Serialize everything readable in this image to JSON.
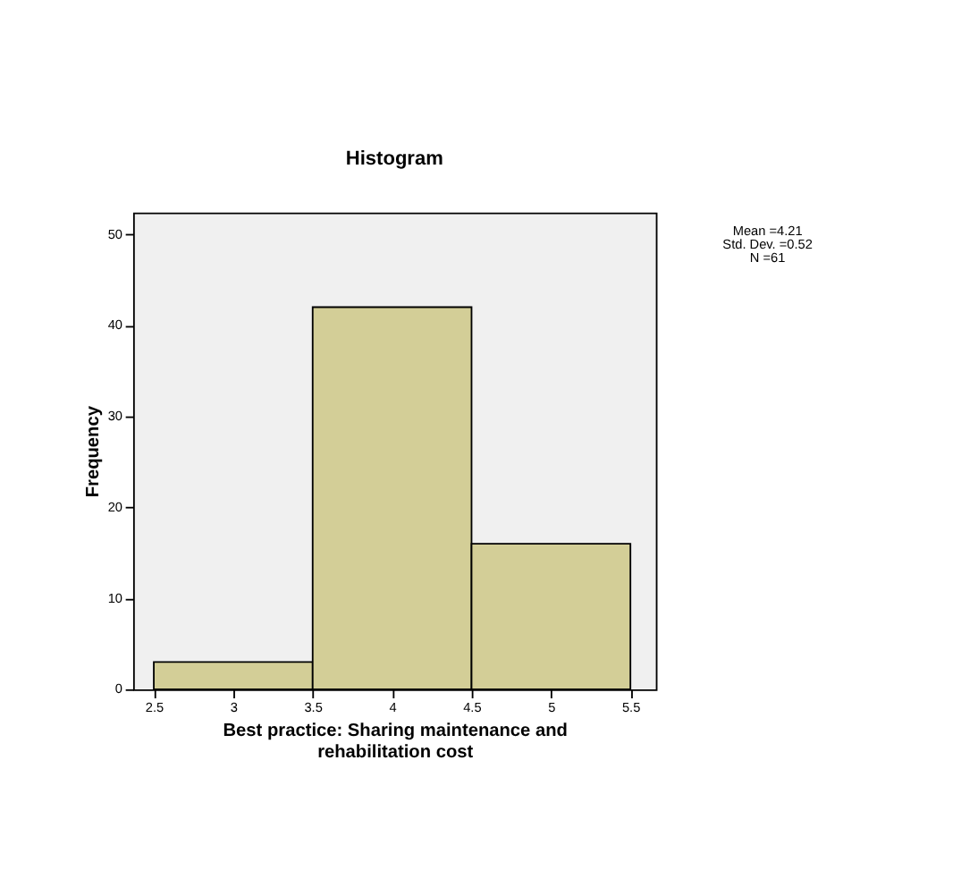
{
  "chart_data": {
    "type": "histogram",
    "title": "Histogram",
    "xlabel": "Best practice: Sharing maintenance and rehabilitation cost",
    "ylabel": "Frequency",
    "bins": [
      2.5,
      3.5,
      4.5,
      5.5
    ],
    "values": [
      3,
      42,
      16
    ],
    "color": "#d3ce97",
    "xlim": [
      2.37,
      5.66
    ],
    "xticks": [
      2.5,
      3,
      3.5,
      4,
      4.5,
      5,
      5.5
    ],
    "ylim": [
      0,
      52.4
    ],
    "yticks": [
      0,
      10,
      20,
      30,
      40,
      50
    ],
    "grid": false,
    "annotations": [
      "Mean =4.21",
      "Std. Dev. =0.52",
      "N =61"
    ]
  }
}
